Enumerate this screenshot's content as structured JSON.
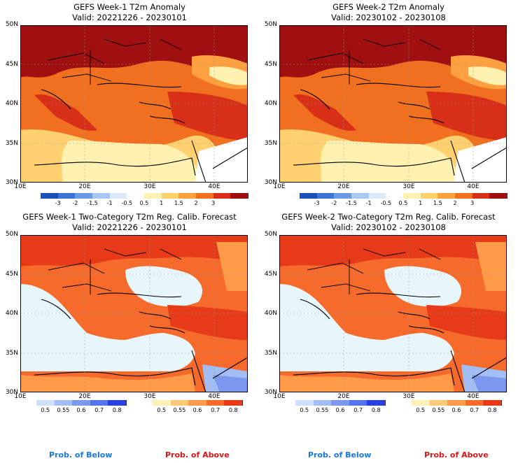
{
  "panels": [
    {
      "title_line1": "GEFS Week-1 T2m Anomaly",
      "title_line2": "Valid: 20221226 - 20230101"
    },
    {
      "title_line1": "GEFS Week-2 T2m Anomaly",
      "title_line2": "Valid: 20230102 - 20230108"
    },
    {
      "title_line1": "GEFS Week-1 Two-Category T2m Reg. Calib. Forecast",
      "title_line2": "Valid: 20221226 - 20230101"
    },
    {
      "title_line1": "GEFS Week-2 Two-Category T2m Reg. Calib. Forecast",
      "title_line2": "Valid: 20230102 - 20230108"
    }
  ],
  "axes": {
    "lat_labels": [
      "50N",
      "45N",
      "40N",
      "35N",
      "30N"
    ],
    "lon_labels": [
      "10E",
      "20E",
      "30E",
      "40E"
    ]
  },
  "anomaly_colorbar": {
    "labels": [
      "-3",
      "-2",
      "-1.5",
      "-1",
      "-0.5",
      "0.5",
      "1",
      "1.5",
      "2",
      "3"
    ],
    "colors": [
      "#1a4fb8",
      "#3c73d6",
      "#6a9ce6",
      "#a6c8f2",
      "#dbe9f9",
      "#ffffff",
      "#fff1b0",
      "#ffd070",
      "#ffa040",
      "#f07020",
      "#d83018",
      "#a01010"
    ]
  },
  "prob_below_colorbar": {
    "labels": [
      "0.5",
      "0.55",
      "0.6",
      "0.7",
      "0.8"
    ],
    "colors": [
      "#cfe0fa",
      "#a3bef5",
      "#7c98ee",
      "#5874e8",
      "#2a40e0"
    ]
  },
  "prob_above_colorbar": {
    "labels": [
      "0.5",
      "0.55",
      "0.6",
      "0.7",
      "0.8"
    ],
    "colors": [
      "#fff0b8",
      "#ffc878",
      "#ff9a48",
      "#f66a2c",
      "#e63a18"
    ]
  },
  "footer": {
    "below_label": "Prob. of Below",
    "above_label": "Prob. of Above",
    "below_color": "#1a78d8",
    "above_color": "#d81818"
  }
}
